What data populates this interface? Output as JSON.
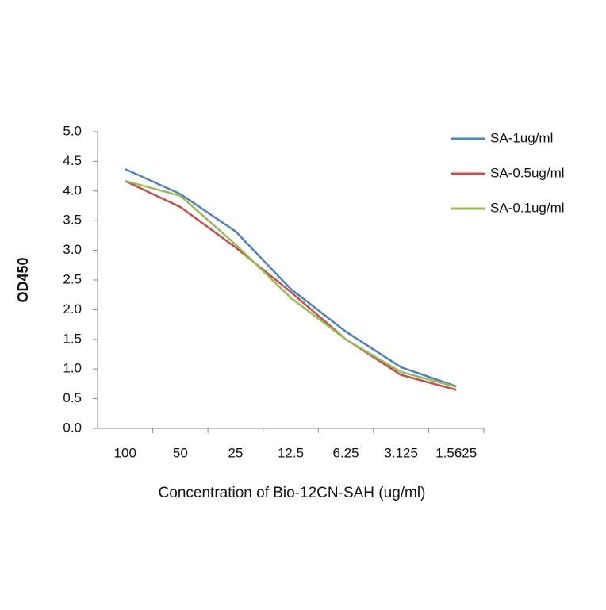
{
  "chart_data": {
    "type": "line",
    "x_label": "Concentration of Bio-12CN-SAH (ug/ml)",
    "y_label": "OD450",
    "categories": [
      "100",
      "50",
      "25",
      "12.5",
      "6.25",
      "3.125",
      "1.5625"
    ],
    "series": [
      {
        "name": "SA-1ug/ml",
        "color": "#4f81bd",
        "values": [
          4.37,
          3.95,
          3.32,
          2.35,
          1.63,
          1.03,
          0.71
        ]
      },
      {
        "name": "SA-0.5ug/ml",
        "color": "#c0504d",
        "values": [
          4.17,
          3.73,
          3.05,
          2.3,
          1.5,
          0.9,
          0.65
        ]
      },
      {
        "name": "SA-0.1ug/ml",
        "color": "#9bbb59",
        "values": [
          4.17,
          3.92,
          3.1,
          2.2,
          1.5,
          0.95,
          0.7
        ]
      }
    ],
    "ylim": [
      0,
      5
    ],
    "yticks": [
      {
        "value": 0,
        "label": "0.0"
      },
      0.5,
      {
        "value": 1,
        "label": "1.0"
      },
      1.5,
      {
        "value": 2,
        "label": "2.0"
      },
      2.5,
      {
        "value": 3,
        "label": "3.0"
      },
      3.5,
      {
        "value": 4,
        "label": "4.0"
      },
      4.5,
      {
        "value": 5,
        "label": "5.0"
      }
    ],
    "grid": false,
    "legend": "top-right"
  }
}
